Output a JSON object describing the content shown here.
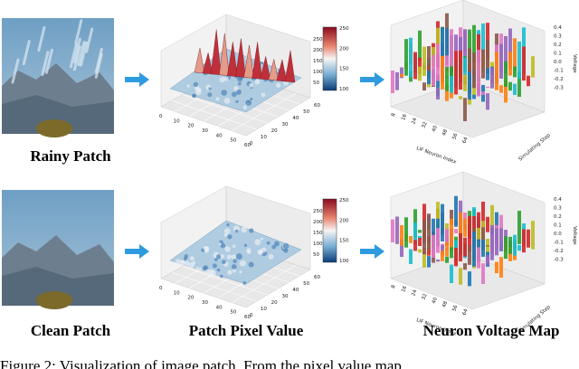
{
  "rows": [
    "Rainy Patch",
    "Clean Patch"
  ],
  "column_titles": [
    "Patch Pixel Value",
    "Neuron Voltage Map"
  ],
  "surface_plot": {
    "axis_ticks": [
      "0",
      "10",
      "20",
      "30",
      "40",
      "50",
      "60"
    ],
    "z_ticks": [
      "250",
      "200",
      "150",
      "100",
      "50"
    ],
    "colorbar_ticks": [
      "250",
      "200",
      "150",
      "100"
    ]
  },
  "voltage_plot": {
    "x_label": "LIF Neuron Index",
    "y_label": "Simulating Step",
    "z_label": "Voltage",
    "x_ticks": [
      "8",
      "16",
      "24",
      "32",
      "40",
      "48",
      "56",
      "64"
    ],
    "z_ticks": [
      "0.4",
      "0.3",
      "0.2",
      "0.1",
      "0.0",
      "-0.1",
      "-0.2",
      "-0.3"
    ]
  },
  "caption": "Figure 2: Visualization of image patch. From the pixel value map"
}
